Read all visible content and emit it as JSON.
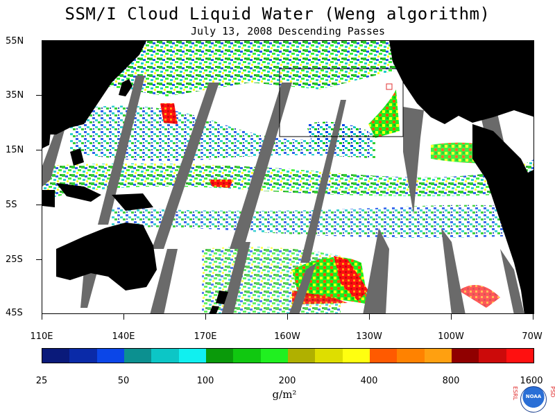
{
  "title": "SSM/I Cloud Liquid Water (Weng algorithm)",
  "subtitle": "July 13, 2008  Descending Passes",
  "latitude_labels": [
    "55N",
    "35N",
    "15N",
    "5S",
    "25S",
    "45S"
  ],
  "longitude_labels": [
    "110E",
    "140E",
    "170E",
    "160W",
    "130W",
    "100W",
    "70W"
  ],
  "colorbar": {
    "colors": [
      "#0a1a7a",
      "#0a2aa8",
      "#0b46e8",
      "#0c9090",
      "#0cc6c6",
      "#10f0f0",
      "#0a9a0a",
      "#10c810",
      "#20f020",
      "#b0b000",
      "#dede00",
      "#ffff10",
      "#ff5a00",
      "#ff8200",
      "#ffa010",
      "#900000",
      "#cc0a0a",
      "#ff1010"
    ],
    "tick_labels": [
      "25",
      "50",
      "100",
      "200",
      "400",
      "800",
      "1600"
    ],
    "units": "g/m²"
  },
  "colors": {
    "land": "#000000",
    "missing_swath": "#6a6a6a",
    "ocean_clear": "#ffffff",
    "box_outline": "#000000",
    "marker": "#e03030"
  },
  "logo": {
    "left_text": "ESRL",
    "right_text": "PSD",
    "center_text": "NOAA"
  }
}
